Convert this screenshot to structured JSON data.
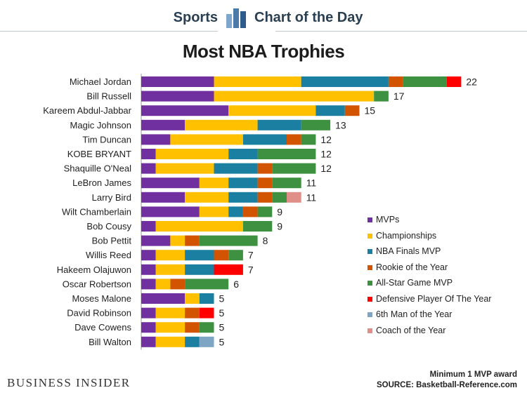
{
  "header": {
    "section": "Sports",
    "series": "Chart of the Day"
  },
  "footer": {
    "brand": "BUSINESS INSIDER",
    "note1": "Minimum 1 MVP award",
    "note2": "SOURCE: Basketball-Reference.com"
  },
  "chart_data": {
    "type": "bar",
    "orientation": "horizontal",
    "stacked": true,
    "title": "Most NBA Trophies",
    "categories": [
      "Michael Jordan",
      "Bill Russell",
      "Kareem Abdul-Jabbar",
      "Magic Johnson",
      "Tim Duncan",
      "KOBE BRYANT",
      "Shaquille O'Neal",
      "LeBron James",
      "Larry Bird",
      "Wilt Chamberlain",
      "Bob Cousy",
      "Bob Pettit",
      "Willis Reed",
      "Hakeem Olajuwon",
      "Oscar Robertson",
      "Moses Malone",
      "David Robinson",
      "Dave Cowens",
      "Bill Walton"
    ],
    "totals": [
      22,
      17,
      15,
      13,
      12,
      12,
      12,
      11,
      11,
      9,
      9,
      8,
      7,
      7,
      6,
      5,
      5,
      5,
      5
    ],
    "series": [
      {
        "name": "MVPs",
        "color": "#7030a0",
        "values": [
          5,
          5,
          6,
          3,
          2,
          1,
          1,
          4,
          3,
          4,
          1,
          2,
          1,
          1,
          1,
          3,
          1,
          1,
          1
        ]
      },
      {
        "name": "Championships",
        "color": "#ffc000",
        "values": [
          6,
          11,
          6,
          5,
          5,
          5,
          4,
          2,
          3,
          2,
          6,
          1,
          2,
          2,
          1,
          1,
          2,
          2,
          2
        ]
      },
      {
        "name": "NBA Finals MVP",
        "color": "#1a7fa0",
        "values": [
          6,
          0,
          2,
          3,
          3,
          2,
          3,
          2,
          2,
          1,
          0,
          0,
          2,
          2,
          0,
          1,
          0,
          0,
          1
        ]
      },
      {
        "name": "Rookie of the Year",
        "color": "#d35400",
        "values": [
          1,
          0,
          1,
          0,
          1,
          0,
          1,
          1,
          1,
          1,
          0,
          1,
          1,
          0,
          1,
          0,
          1,
          1,
          0
        ]
      },
      {
        "name": "All-Star Game MVP",
        "color": "#3d9140",
        "values": [
          3,
          1,
          0,
          2,
          1,
          4,
          3,
          2,
          1,
          1,
          2,
          4,
          1,
          0,
          3,
          0,
          0,
          1,
          0
        ]
      },
      {
        "name": "Defensive Player Of The Year",
        "color": "#ff0000",
        "values": [
          1,
          0,
          0,
          0,
          0,
          0,
          0,
          0,
          0,
          0,
          0,
          0,
          0,
          2,
          0,
          0,
          1,
          0,
          0
        ]
      },
      {
        "name": "6th Man of the Year",
        "color": "#7ea6c4",
        "values": [
          0,
          0,
          0,
          0,
          0,
          0,
          0,
          0,
          0,
          0,
          0,
          0,
          0,
          0,
          0,
          0,
          0,
          0,
          1
        ]
      },
      {
        "name": "Coach of the Year",
        "color": "#e08f88",
        "values": [
          0,
          0,
          0,
          0,
          0,
          0,
          0,
          0,
          1,
          0,
          0,
          0,
          0,
          0,
          0,
          0,
          0,
          0,
          0
        ]
      }
    ],
    "legend_position": "right",
    "grid": false
  }
}
